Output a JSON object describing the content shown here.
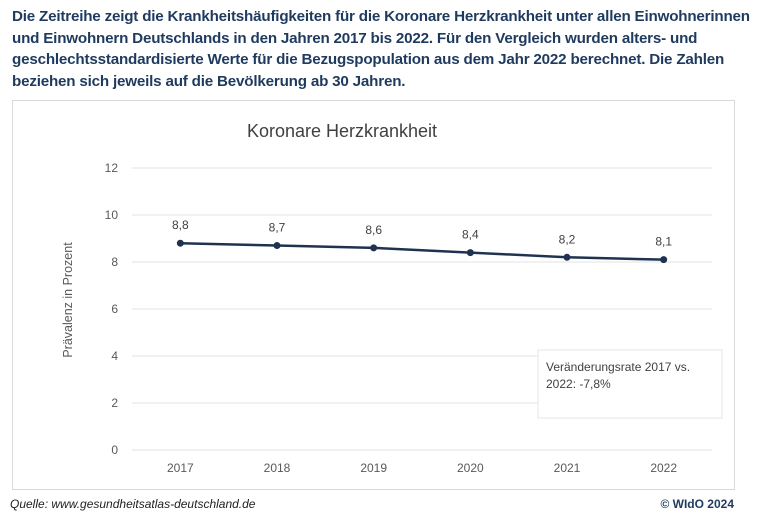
{
  "intro_text": "Die Zeitreihe zeigt die Krankheitshäufigkeiten für die Koronare Herzkrankheit unter allen Einwohnerinnen und Einwohnern Deutschlands in den Jahren 2017 bis 2022. Für den Vergleich wurden alters- und geschlechtsstandardisierte Werte für die Bezugspopulation aus dem Jahr 2022 berechnet. Die Zahlen beziehen sich jeweils auf die Bevölkerung ab 30 Jahren.",
  "source": "Quelle: www.gesundheitsatlas-deutschland.de",
  "copyright": "© WIdO 2024",
  "chart_data": {
    "type": "line",
    "title": "Koronare Herzkrankheit",
    "ylabel": "Prävalenz in Prozent",
    "xlabel": "",
    "categories": [
      "2017",
      "2018",
      "2019",
      "2020",
      "2021",
      "2022"
    ],
    "values": [
      8.8,
      8.7,
      8.6,
      8.4,
      8.2,
      8.1
    ],
    "data_labels": [
      "8,8",
      "8,7",
      "8,6",
      "8,4",
      "8,2",
      "8,1"
    ],
    "ylim": [
      0,
      12
    ],
    "yticks": [
      "0",
      "2",
      "4",
      "6",
      "8",
      "10",
      "12"
    ],
    "grid": true,
    "line_color": "#1f3350",
    "annotation": [
      "Veränderungsrate 2017 vs.",
      "2022: -7,8%"
    ]
  }
}
